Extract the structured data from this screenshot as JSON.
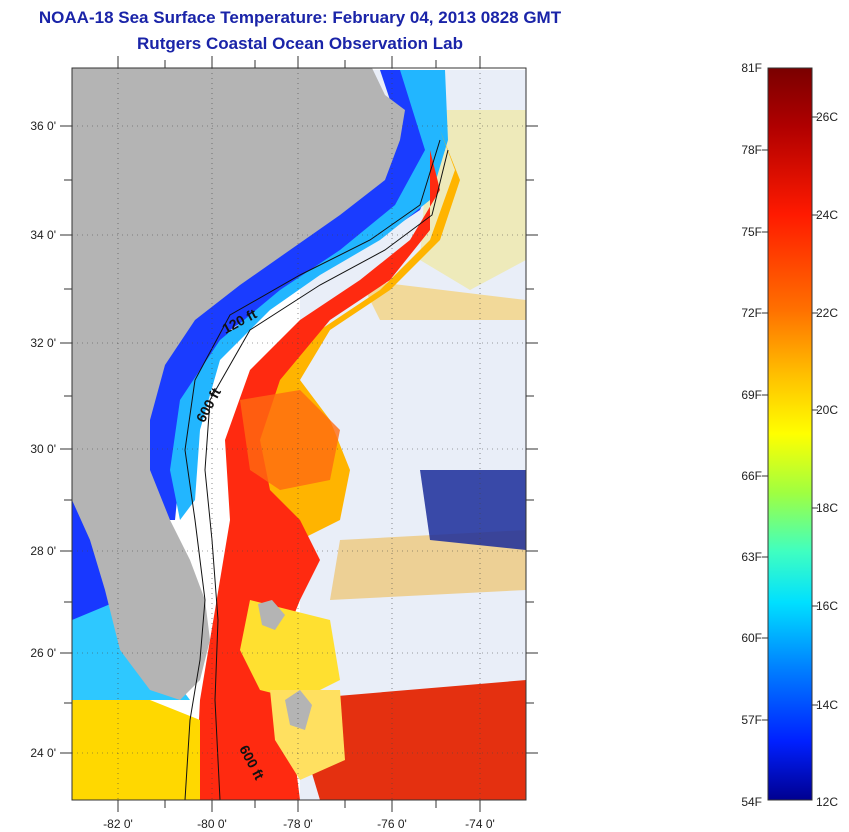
{
  "header": {
    "title": "NOAA-18 Sea Surface Temperature:  February 04, 2013 0828 GMT",
    "subtitle": "Rutgers Coastal Ocean Observation Lab"
  },
  "map": {
    "lat_ticks": [
      "36 0'",
      "34 0'",
      "32 0'",
      "30 0'",
      "28 0'",
      "26 0'",
      "24 0'"
    ],
    "lon_ticks": [
      "-82 0'",
      "-80 0'",
      "-78 0'",
      "-76 0'",
      "-74 0'"
    ],
    "contours": [
      "120 ft",
      "600 ft",
      "600 ft"
    ]
  },
  "colorbar": {
    "fahrenheit": [
      "81F",
      "78F",
      "75F",
      "72F",
      "69F",
      "66F",
      "63F",
      "60F",
      "57F",
      "54F"
    ],
    "celsius": [
      "26C",
      "24C",
      "22C",
      "20C",
      "18C",
      "16C",
      "14C",
      "12C"
    ],
    "colors": [
      "#7a0000",
      "#c00000",
      "#ff2000",
      "#ff7000",
      "#ffc000",
      "#ffff00",
      "#a0ff40",
      "#40ffc0",
      "#00e0ff",
      "#0080ff",
      "#0020ff",
      "#000090"
    ]
  }
}
